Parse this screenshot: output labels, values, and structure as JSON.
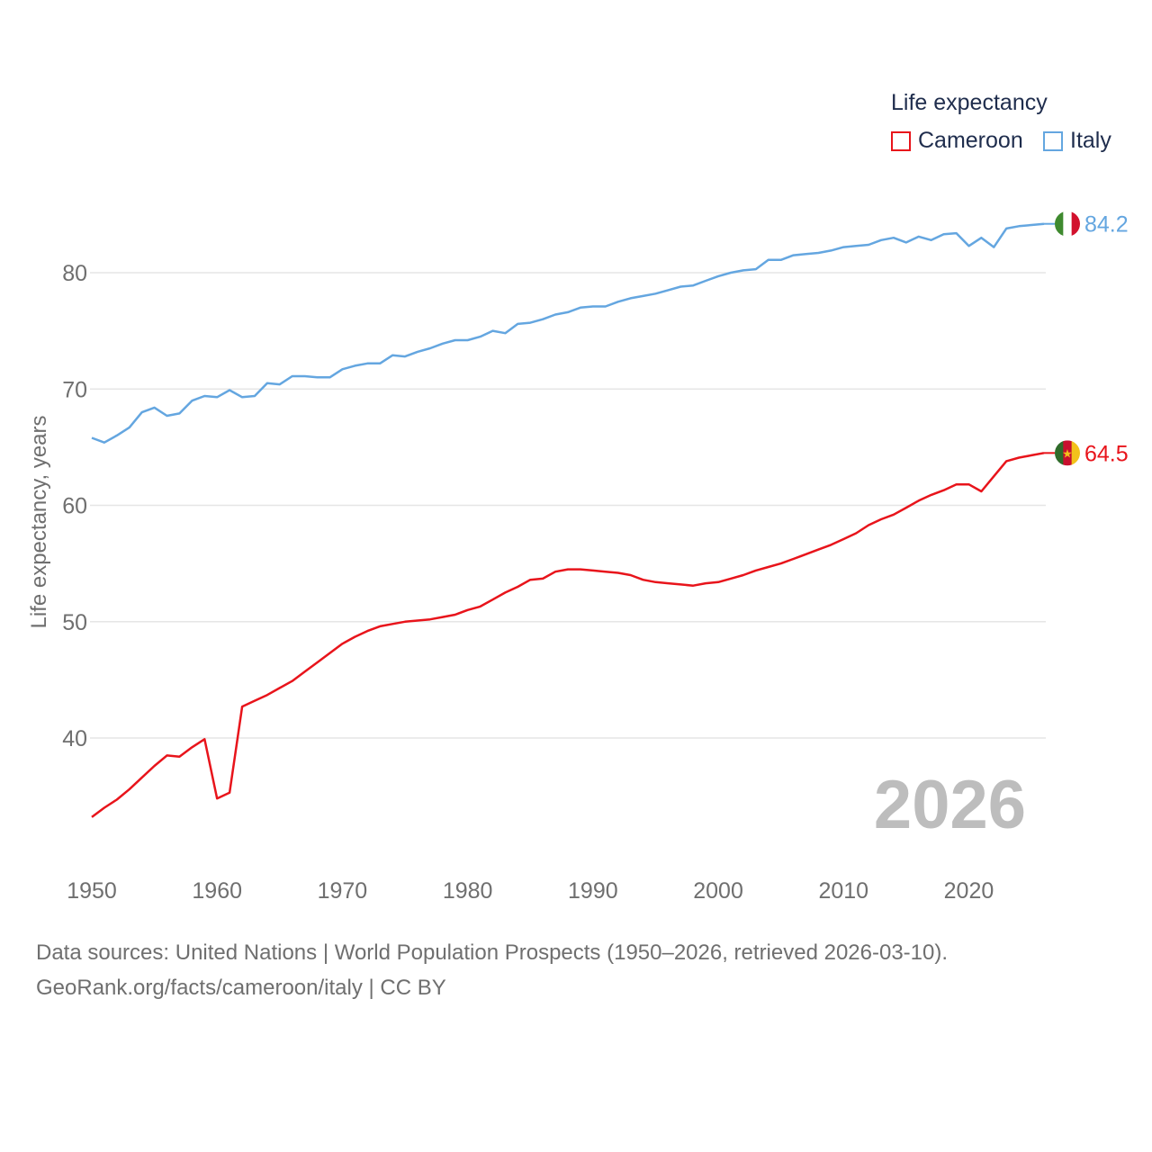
{
  "legend": {
    "title": "Life expectancy",
    "items": [
      {
        "label": "Cameroon",
        "color": "#e8141b"
      },
      {
        "label": "Italy",
        "color": "#64a6e0"
      }
    ]
  },
  "year_watermark": "2026",
  "source": {
    "line1": "Data sources: United Nations | World Population Prospects (1950–2026, retrieved 2026-03-10).",
    "line2": "GeoRank.org/facts/cameroon/italy | CC BY"
  },
  "chart_data": {
    "type": "line",
    "title": "Life expectancy",
    "xlabel": "",
    "ylabel": "Life expectancy, years",
    "xlim": [
      1950,
      2026
    ],
    "ylim": [
      31,
      86
    ],
    "x_ticks": [
      1950,
      1960,
      1970,
      1980,
      1990,
      2000,
      2010,
      2020
    ],
    "y_ticks": [
      40,
      50,
      60,
      70,
      80
    ],
    "grid": true,
    "legend_position": "top-right",
    "series": [
      {
        "name": "Italy",
        "color": "#64a6e0",
        "end_label": "84.2",
        "flag": "italy-flag-icon",
        "values": [
          [
            1950,
            65.8
          ],
          [
            1951,
            65.4
          ],
          [
            1952,
            66.0
          ],
          [
            1953,
            66.7
          ],
          [
            1954,
            68.0
          ],
          [
            1955,
            68.4
          ],
          [
            1956,
            67.7
          ],
          [
            1957,
            67.9
          ],
          [
            1958,
            69.0
          ],
          [
            1959,
            69.4
          ],
          [
            1960,
            69.3
          ],
          [
            1961,
            69.9
          ],
          [
            1962,
            69.3
          ],
          [
            1963,
            69.4
          ],
          [
            1964,
            70.5
          ],
          [
            1965,
            70.4
          ],
          [
            1966,
            71.1
          ],
          [
            1967,
            71.1
          ],
          [
            1968,
            71.0
          ],
          [
            1969,
            71.0
          ],
          [
            1970,
            71.7
          ],
          [
            1971,
            72.0
          ],
          [
            1972,
            72.2
          ],
          [
            1973,
            72.2
          ],
          [
            1974,
            72.9
          ],
          [
            1975,
            72.8
          ],
          [
            1976,
            73.2
          ],
          [
            1977,
            73.5
          ],
          [
            1978,
            73.9
          ],
          [
            1979,
            74.2
          ],
          [
            1980,
            74.2
          ],
          [
            1981,
            74.5
          ],
          [
            1982,
            75.0
          ],
          [
            1983,
            74.8
          ],
          [
            1984,
            75.6
          ],
          [
            1985,
            75.7
          ],
          [
            1986,
            76.0
          ],
          [
            1987,
            76.4
          ],
          [
            1988,
            76.6
          ],
          [
            1989,
            77.0
          ],
          [
            1990,
            77.1
          ],
          [
            1991,
            77.1
          ],
          [
            1992,
            77.5
          ],
          [
            1993,
            77.8
          ],
          [
            1994,
            78.0
          ],
          [
            1995,
            78.2
          ],
          [
            1996,
            78.5
          ],
          [
            1997,
            78.8
          ],
          [
            1998,
            78.9
          ],
          [
            1999,
            79.3
          ],
          [
            2000,
            79.7
          ],
          [
            2001,
            80.0
          ],
          [
            2002,
            80.2
          ],
          [
            2003,
            80.3
          ],
          [
            2004,
            81.1
          ],
          [
            2005,
            81.1
          ],
          [
            2006,
            81.5
          ],
          [
            2007,
            81.6
          ],
          [
            2008,
            81.7
          ],
          [
            2009,
            81.9
          ],
          [
            2010,
            82.2
          ],
          [
            2011,
            82.3
          ],
          [
            2012,
            82.4
          ],
          [
            2013,
            82.8
          ],
          [
            2014,
            83.0
          ],
          [
            2015,
            82.6
          ],
          [
            2016,
            83.1
          ],
          [
            2017,
            82.8
          ],
          [
            2018,
            83.3
          ],
          [
            2019,
            83.4
          ],
          [
            2020,
            82.3
          ],
          [
            2021,
            83.0
          ],
          [
            2022,
            82.2
          ],
          [
            2023,
            83.8
          ],
          [
            2024,
            84.0
          ],
          [
            2025,
            84.1
          ],
          [
            2026,
            84.2
          ]
        ]
      },
      {
        "name": "Cameroon",
        "color": "#e8141b",
        "end_label": "64.5",
        "flag": "cameroon-flag-icon",
        "values": [
          [
            1950,
            33.2
          ],
          [
            1951,
            34.0
          ],
          [
            1952,
            34.7
          ],
          [
            1953,
            35.6
          ],
          [
            1954,
            36.6
          ],
          [
            1955,
            37.6
          ],
          [
            1956,
            38.5
          ],
          [
            1957,
            38.4
          ],
          [
            1958,
            39.2
          ],
          [
            1959,
            39.9
          ],
          [
            1960,
            34.8
          ],
          [
            1961,
            35.3
          ],
          [
            1962,
            42.7
          ],
          [
            1963,
            43.2
          ],
          [
            1964,
            43.7
          ],
          [
            1965,
            44.3
          ],
          [
            1966,
            44.9
          ],
          [
            1967,
            45.7
          ],
          [
            1968,
            46.5
          ],
          [
            1969,
            47.3
          ],
          [
            1970,
            48.1
          ],
          [
            1971,
            48.7
          ],
          [
            1972,
            49.2
          ],
          [
            1973,
            49.6
          ],
          [
            1974,
            49.8
          ],
          [
            1975,
            50.0
          ],
          [
            1976,
            50.1
          ],
          [
            1977,
            50.2
          ],
          [
            1978,
            50.4
          ],
          [
            1979,
            50.6
          ],
          [
            1980,
            51.0
          ],
          [
            1981,
            51.3
          ],
          [
            1982,
            51.9
          ],
          [
            1983,
            52.5
          ],
          [
            1984,
            53.0
          ],
          [
            1985,
            53.6
          ],
          [
            1986,
            53.7
          ],
          [
            1987,
            54.3
          ],
          [
            1988,
            54.5
          ],
          [
            1989,
            54.5
          ],
          [
            1990,
            54.4
          ],
          [
            1991,
            54.3
          ],
          [
            1992,
            54.2
          ],
          [
            1993,
            54.0
          ],
          [
            1994,
            53.6
          ],
          [
            1995,
            53.4
          ],
          [
            1996,
            53.3
          ],
          [
            1997,
            53.2
          ],
          [
            1998,
            53.1
          ],
          [
            1999,
            53.3
          ],
          [
            2000,
            53.4
          ],
          [
            2001,
            53.7
          ],
          [
            2002,
            54.0
          ],
          [
            2003,
            54.4
          ],
          [
            2004,
            54.7
          ],
          [
            2005,
            55.0
          ],
          [
            2006,
            55.4
          ],
          [
            2007,
            55.8
          ],
          [
            2008,
            56.2
          ],
          [
            2009,
            56.6
          ],
          [
            2010,
            57.1
          ],
          [
            2011,
            57.6
          ],
          [
            2012,
            58.3
          ],
          [
            2013,
            58.8
          ],
          [
            2014,
            59.2
          ],
          [
            2015,
            59.8
          ],
          [
            2016,
            60.4
          ],
          [
            2017,
            60.9
          ],
          [
            2018,
            61.3
          ],
          [
            2019,
            61.8
          ],
          [
            2020,
            61.8
          ],
          [
            2021,
            61.2
          ],
          [
            2022,
            62.5
          ],
          [
            2023,
            63.8
          ],
          [
            2024,
            64.1
          ],
          [
            2025,
            64.3
          ],
          [
            2026,
            64.5
          ]
        ]
      }
    ]
  }
}
